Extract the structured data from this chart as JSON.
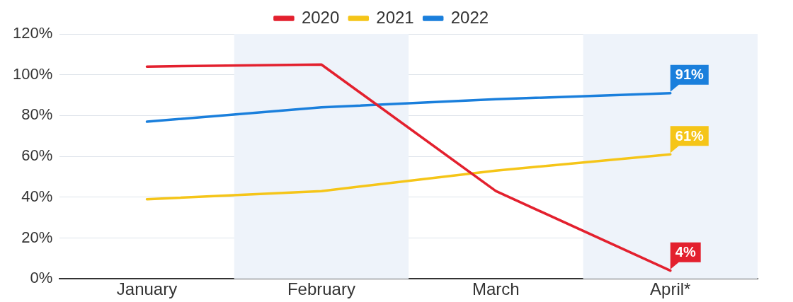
{
  "chart_data": {
    "type": "line",
    "categories": [
      "January",
      "February",
      "March",
      "April*"
    ],
    "series": [
      {
        "name": "2020",
        "color": "#e3202e",
        "values": [
          104,
          105,
          43,
          4
        ],
        "value_labels": [
          null,
          null,
          null,
          "4%"
        ]
      },
      {
        "name": "2021",
        "color": "#f5c518",
        "values": [
          39,
          43,
          53,
          61
        ],
        "value_labels": [
          null,
          null,
          null,
          "61%"
        ]
      },
      {
        "name": "2022",
        "color": "#1a7fdc",
        "values": [
          77,
          84,
          88,
          91
        ],
        "value_labels": [
          null,
          null,
          null,
          "91%"
        ]
      }
    ],
    "ylim": [
      0,
      120
    ],
    "yticks": [
      {
        "value": 0,
        "label": "0%"
      },
      {
        "value": 20,
        "label": "20%"
      },
      {
        "value": 40,
        "label": "40%"
      },
      {
        "value": 60,
        "label": "60%"
      },
      {
        "value": 80,
        "label": "80%"
      },
      {
        "value": 100,
        "label": "100%"
      },
      {
        "value": 120,
        "label": "120%"
      }
    ],
    "bands": [
      {
        "axis": "x",
        "from": "February",
        "to": "February",
        "color": "#eef3fa"
      },
      {
        "axis": "x",
        "from": "April*",
        "to": "April*",
        "color": "#eef3fa"
      }
    ],
    "grid": "y",
    "legend": "top",
    "marker": "none",
    "line_style": "solid"
  }
}
